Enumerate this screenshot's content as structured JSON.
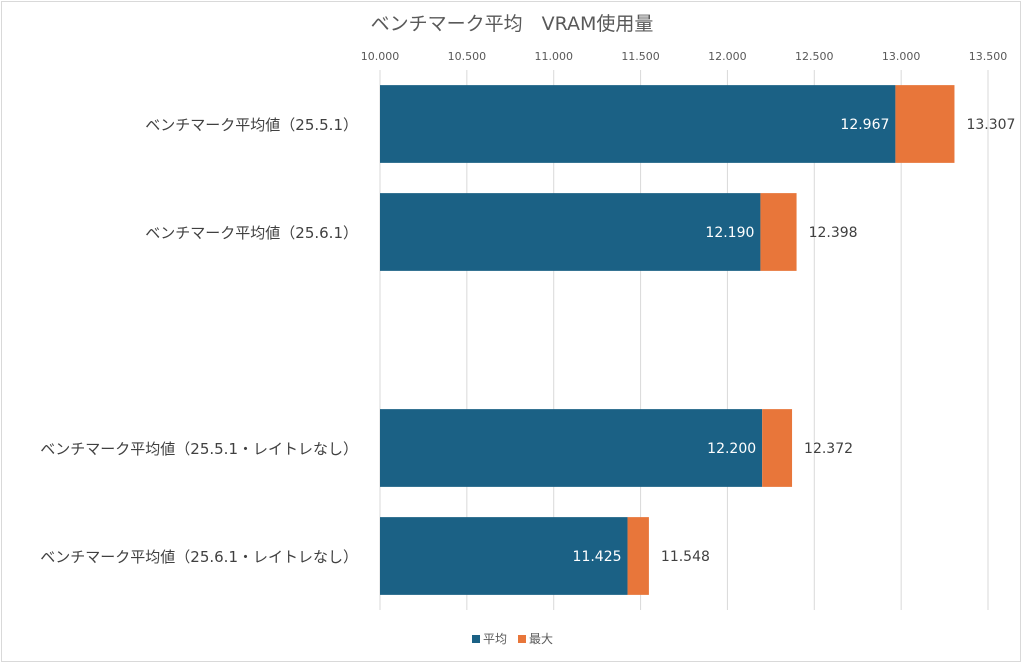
{
  "chart_data": {
    "type": "bar",
    "orientation": "horizontal",
    "stacked": true,
    "title": "ベンチマーク平均　VRAM使用量",
    "categories": [
      "ベンチマーク平均値（25.5.1）",
      "ベンチマーク平均値（25.6.1）",
      "",
      "ベンチマーク平均値（25.5.1・レイトレなし）",
      "ベンチマーク平均値（25.6.1・レイトレなし）"
    ],
    "series": [
      {
        "name": "平均",
        "color": "#1b6185",
        "values": [
          12967,
          12190,
          null,
          12200,
          11425
        ]
      },
      {
        "name": "最大",
        "color": "#e8763a",
        "totals": [
          13307,
          12398,
          null,
          12372,
          11548
        ]
      }
    ],
    "data_labels": {
      "inside": [
        "12.967",
        "12.190",
        "",
        "12.200",
        "11.425"
      ],
      "outside": [
        "13.307",
        "12.398",
        "",
        "12.372",
        "11.548"
      ]
    },
    "xlim": [
      10000,
      13500
    ],
    "xticks": [
      10000,
      10500,
      11000,
      11500,
      12000,
      12500,
      13000,
      13500
    ],
    "xtick_labels": [
      "10.000",
      "10.500",
      "11.000",
      "11.500",
      "12.000",
      "12.500",
      "13.000",
      "13.500"
    ],
    "xaxis_position": "top",
    "grid": "vertical",
    "legend": {
      "placement": "bottom",
      "items": [
        "平均",
        "最大"
      ]
    }
  }
}
